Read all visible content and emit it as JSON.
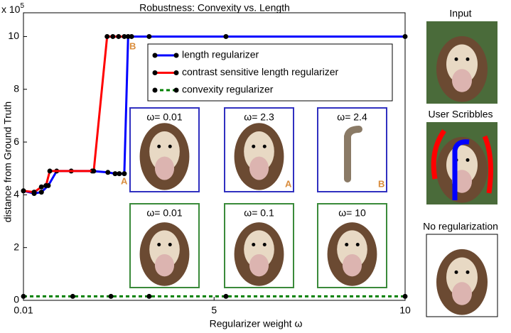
{
  "chart_data": {
    "type": "line",
    "title": "Robustness: Convexity vs. Length",
    "x_label": "Regularizer weight ω",
    "y_label": "distance from Ground Truth",
    "y_multiplier": {
      "base": "x 10",
      "exponent": "5"
    },
    "xlim": [
      0.01,
      10
    ],
    "xticks": [
      0.01,
      5,
      10
    ],
    "ylim": [
      0,
      10.9
    ],
    "yticks": [
      0,
      2,
      4,
      6,
      8,
      10
    ],
    "legend": "top-right",
    "series": [
      {
        "name": "length regularizer",
        "color": "#0000ff",
        "dash": false,
        "x": [
          0.01,
          0.29,
          0.48,
          0.66,
          0.88,
          1.26,
          1.81,
          2.22,
          2.41,
          2.52,
          2.65,
          2.75,
          2.84,
          3.3,
          5.31,
          10
        ],
        "values": [
          4.15,
          4.05,
          4.1,
          4.35,
          4.9,
          4.9,
          4.9,
          4.85,
          4.8,
          4.8,
          4.8,
          10,
          10,
          10,
          10,
          10
        ]
      },
      {
        "name": "contrast sensitive length regularizer",
        "color": "#ff0000",
        "dash": false,
        "x": [
          0.01,
          0.29,
          0.48,
          0.6,
          0.7,
          1.85,
          2.2,
          2.35,
          2.5,
          2.65
        ],
        "values": [
          4.15,
          4.1,
          4.3,
          4.35,
          4.9,
          4.9,
          10,
          10,
          10,
          10
        ]
      },
      {
        "name": "convexity regularizer",
        "color": "#008000",
        "dash": true,
        "x": [
          0.01,
          1.3,
          2.3,
          3.3,
          5.31,
          10
        ],
        "values": [
          0.15,
          0.15,
          0.15,
          0.15,
          0.15,
          0.15
        ]
      }
    ],
    "annotations": [
      "A",
      "B"
    ]
  },
  "insets": {
    "length_row": [
      {
        "label": "ω= 0.01",
        "tag": null
      },
      {
        "label": "ω= 2.3",
        "tag": "A"
      },
      {
        "label": "ω= 2.4",
        "tag": "B"
      }
    ],
    "convexity_row": [
      {
        "label": "ω= 0.01"
      },
      {
        "label": "ω= 0.1"
      },
      {
        "label": "ω= 10"
      }
    ]
  },
  "side_panels": [
    "Input",
    "User Scribbles",
    "No regularization"
  ]
}
